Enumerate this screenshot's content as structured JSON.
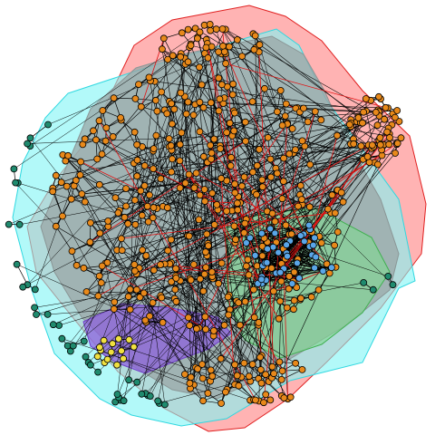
{
  "graph": {
    "type": "network-with-group-hulls",
    "background": "#ffffff",
    "groups": [
      {
        "name": "red",
        "fill": "#ff8080",
        "stroke": "#e02020",
        "opacity": 0.6,
        "node_color": "#e8891a",
        "node_count": 520
      },
      {
        "name": "cyan",
        "fill": "#7ff5f5",
        "stroke": "#30d8e0",
        "opacity": 0.6,
        "node_color": "#1f8a6e",
        "node_count": 45
      },
      {
        "name": "green",
        "fill": "#7fd88f",
        "stroke": "#40b050",
        "opacity": 0.6,
        "node_color": "#5aa6e8",
        "node_count": 40
      },
      {
        "name": "purple",
        "fill": "#8c5ce0",
        "stroke": "#7040c8",
        "opacity": 0.7,
        "node_color": "#f0e040",
        "node_count": 14
      }
    ],
    "edge_colors": {
      "primary": "#000000",
      "cross": "#e01010"
    }
  }
}
